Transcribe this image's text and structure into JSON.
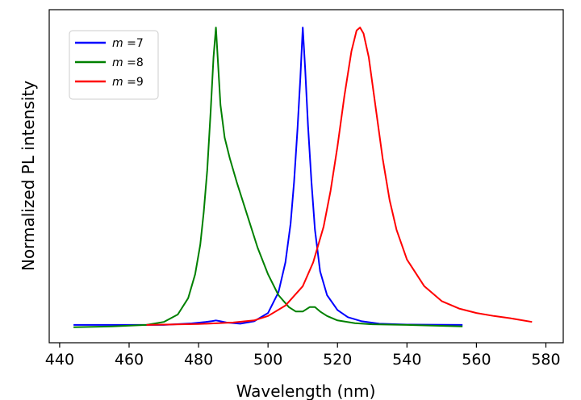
{
  "chart_data": {
    "type": "line",
    "title": "",
    "xlabel": "Wavelength (nm)",
    "ylabel": "Normalized PL intensity",
    "xlim": [
      437,
      585
    ],
    "ylim": [
      -0.06,
      1.06
    ],
    "x_ticks": [
      440,
      460,
      480,
      500,
      520,
      540,
      560,
      580
    ],
    "y_ticks_shown": false,
    "grid": false,
    "legend_position": "top-left",
    "series": [
      {
        "name": "m =7",
        "legend_var": "m",
        "legend_val": "=7",
        "color": "#0000ff",
        "x": [
          444,
          460,
          470,
          478,
          482,
          484,
          485,
          486,
          488,
          492,
          496,
          500,
          503,
          505,
          506.5,
          507.5,
          508.5,
          509.3,
          510,
          510.7,
          511.5,
          512.5,
          513.5,
          515,
          517,
          520,
          523,
          527,
          532,
          540,
          556
        ],
        "y": [
          0.0,
          0.0,
          0.0,
          0.005,
          0.01,
          0.013,
          0.015,
          0.013,
          0.008,
          0.004,
          0.012,
          0.04,
          0.11,
          0.21,
          0.34,
          0.48,
          0.66,
          0.83,
          1.0,
          0.86,
          0.67,
          0.48,
          0.32,
          0.18,
          0.1,
          0.05,
          0.026,
          0.012,
          0.004,
          0.001,
          0.0
        ]
      },
      {
        "name": "m =8",
        "legend_var": "m",
        "legend_val": "=8",
        "color": "#008000",
        "x": [
          444,
          455,
          465,
          470,
          474,
          477,
          479,
          480.5,
          481.5,
          482.5,
          483.5,
          484.3,
          485,
          485.6,
          486.3,
          487.5,
          489,
          491,
          494,
          497,
          500,
          503,
          506,
          508,
          510,
          512,
          513.5,
          515,
          517,
          520,
          525,
          530,
          540,
          556
        ],
        "y": [
          -0.008,
          -0.005,
          0.0,
          0.01,
          0.035,
          0.09,
          0.17,
          0.27,
          0.38,
          0.52,
          0.72,
          0.9,
          1.0,
          0.88,
          0.74,
          0.63,
          0.56,
          0.48,
          0.37,
          0.26,
          0.17,
          0.1,
          0.06,
          0.045,
          0.045,
          0.06,
          0.06,
          0.045,
          0.03,
          0.015,
          0.006,
          0.002,
          0.0,
          -0.005
        ]
      },
      {
        "name": "m =9",
        "legend_var": "m",
        "legend_val": "=9",
        "color": "#ff0000",
        "x": [
          465,
          480,
          490,
          496,
          500,
          505,
          510,
          513,
          516,
          518,
          520,
          522,
          524,
          525.5,
          526.5,
          527.5,
          529,
          531,
          533,
          535,
          537,
          540,
          545,
          550,
          555,
          560,
          565,
          570,
          576
        ],
        "y": [
          0.0,
          0.003,
          0.008,
          0.015,
          0.03,
          0.065,
          0.13,
          0.21,
          0.33,
          0.45,
          0.6,
          0.77,
          0.92,
          0.99,
          1.0,
          0.98,
          0.9,
          0.73,
          0.56,
          0.42,
          0.32,
          0.22,
          0.13,
          0.08,
          0.055,
          0.04,
          0.03,
          0.022,
          0.01
        ]
      }
    ]
  }
}
